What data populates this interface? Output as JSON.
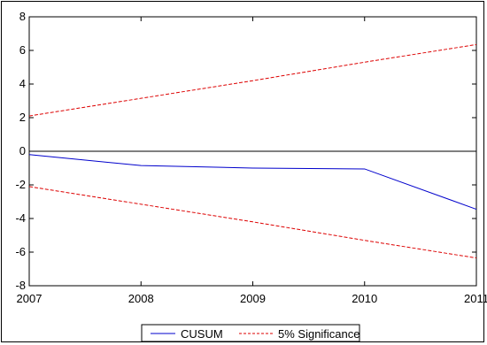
{
  "chart_data": {
    "type": "line",
    "x": [
      2007,
      2008,
      2009,
      2010,
      2011
    ],
    "xlim": [
      2007,
      2011
    ],
    "ylim": [
      -8,
      8
    ],
    "yticks": [
      -8,
      -6,
      -4,
      -2,
      0,
      2,
      4,
      6,
      8
    ],
    "xticks": [
      2007,
      2008,
      2009,
      2010,
      2011
    ],
    "ytick_labels": [
      "-8",
      "-6",
      "-4",
      "-2",
      "0",
      "2",
      "4",
      "6",
      "8"
    ],
    "xtick_labels": [
      "2007",
      "2008",
      "2009",
      "2010",
      "2011"
    ],
    "grid": false,
    "zero_line": true,
    "legend_position": "bottom",
    "series": [
      {
        "name": "CUSUM",
        "values": [
          -0.2,
          -0.85,
          -1.0,
          -1.05,
          -3.45
        ],
        "color": "#0000cc",
        "style": "solid"
      },
      {
        "name": "5% Significance",
        "values": [
          2.1,
          3.15,
          4.2,
          5.3,
          6.35
        ],
        "color": "#dd0000",
        "style": "dashed"
      },
      {
        "name": "5% Significance",
        "values": [
          -2.1,
          -3.15,
          -4.2,
          -5.3,
          -6.35
        ],
        "color": "#dd0000",
        "style": "dashed"
      }
    ],
    "legend": [
      "CUSUM",
      "5% Significance"
    ]
  }
}
